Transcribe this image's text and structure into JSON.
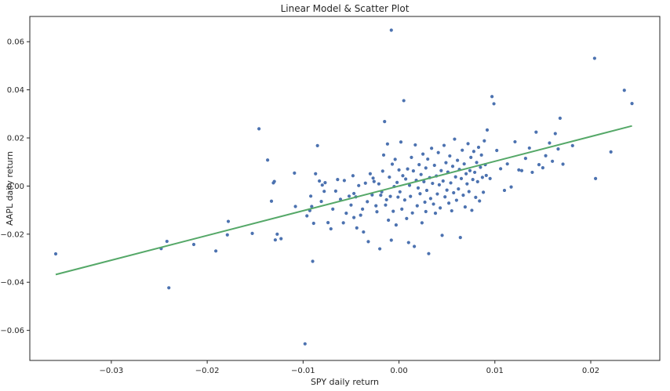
{
  "chart_data": {
    "type": "scatter",
    "title": "Linear Model & Scatter Plot",
    "xlabel": "SPY daily return",
    "ylabel": "AAPL daily return",
    "xlim": [
      -0.0385,
      0.0272
    ],
    "ylim": [
      -0.0725,
      0.0705
    ],
    "x_ticks": [
      -0.03,
      -0.02,
      -0.01,
      0.0,
      0.01,
      0.02
    ],
    "x_tick_labels": [
      "−0.03",
      "−0.02",
      "−0.01",
      "0.00",
      "0.01",
      "0.02"
    ],
    "y_ticks": [
      -0.06,
      -0.04,
      -0.02,
      0.0,
      0.02,
      0.04,
      0.06
    ],
    "y_tick_labels": [
      "−0.06",
      "−0.04",
      "−0.02",
      "0.00",
      "0.02",
      "0.04",
      "0.06"
    ],
    "grid": false,
    "colors": {
      "points": "#4c72b0",
      "line": "#55a868",
      "axes": "#262626"
    },
    "series": [
      {
        "kind": "scatter",
        "points": [
          [
            -0.0358,
            -0.0282
          ],
          [
            -0.0248,
            -0.026
          ],
          [
            -0.0242,
            -0.023
          ],
          [
            -0.024,
            -0.0423
          ],
          [
            -0.0214,
            -0.0243
          ],
          [
            -0.0191,
            -0.027
          ],
          [
            -0.0179,
            -0.0203
          ],
          [
            -0.0178,
            -0.0147
          ],
          [
            -0.0153,
            -0.0197
          ],
          [
            -0.0146,
            0.0238
          ],
          [
            -0.0137,
            0.0108
          ],
          [
            -0.0133,
            -0.0063
          ],
          [
            -0.0131,
            0.0013
          ],
          [
            -0.013,
            0.0019
          ],
          [
            -0.0129,
            -0.0224
          ],
          [
            -0.0127,
            -0.02
          ],
          [
            -0.0123,
            -0.0219
          ],
          [
            -0.0109,
            0.0054
          ],
          [
            -0.0108,
            -0.0085
          ],
          [
            -0.0098,
            -0.0656
          ],
          [
            -0.0096,
            -0.0124
          ],
          [
            -0.0093,
            -0.0102
          ],
          [
            -0.0092,
            -0.0042
          ],
          [
            -0.0091,
            -0.0085
          ],
          [
            -0.009,
            -0.0313
          ],
          [
            -0.0089,
            -0.0155
          ],
          [
            -0.0087,
            0.0051
          ],
          [
            -0.0085,
            0.0168
          ],
          [
            -0.0083,
            0.0021
          ],
          [
            -0.0081,
            -0.0064
          ],
          [
            -0.008,
            0.0004
          ],
          [
            -0.0078,
            -0.0022
          ],
          [
            -0.0077,
            0.0014
          ],
          [
            -0.0074,
            -0.0152
          ],
          [
            -0.0071,
            -0.0178
          ],
          [
            -0.0069,
            -0.0096
          ],
          [
            -0.0066,
            -0.0021
          ],
          [
            -0.0064,
            0.0027
          ],
          [
            -0.0061,
            -0.0055
          ],
          [
            -0.0058,
            -0.0153
          ],
          [
            -0.0057,
            0.0023
          ],
          [
            -0.0055,
            -0.0113
          ],
          [
            -0.0052,
            -0.0042
          ],
          [
            -0.005,
            -0.0079
          ],
          [
            -0.0048,
            0.0043
          ],
          [
            -0.0047,
            -0.0031
          ],
          [
            -0.0045,
            -0.0045
          ],
          [
            -0.0044,
            -0.0174
          ],
          [
            -0.0042,
            0.0002
          ],
          [
            -0.004,
            -0.0121
          ],
          [
            -0.0038,
            -0.0096
          ],
          [
            -0.0037,
            -0.0191
          ],
          [
            -0.0035,
            0.0012
          ],
          [
            -0.0033,
            -0.0065
          ],
          [
            -0.0032,
            -0.0231
          ],
          [
            -0.003,
            0.0051
          ],
          [
            -0.0028,
            -0.0037
          ],
          [
            -0.0027,
            0.0033
          ],
          [
            -0.0026,
            0.0019
          ],
          [
            -0.0024,
            -0.0082
          ],
          [
            -0.0023,
            -0.0107
          ],
          [
            -0.0021,
            0.0009
          ],
          [
            -0.002,
            -0.0261
          ],
          [
            -0.0019,
            -0.0038
          ],
          [
            -0.0018,
            -0.0024
          ],
          [
            -0.0017,
            0.0062
          ],
          [
            -0.0016,
            0.0129
          ],
          [
            -0.0015,
            0.0268
          ],
          [
            -0.0014,
            -0.0079
          ],
          [
            -0.0013,
            -0.0057
          ],
          [
            -0.0012,
            0.0175
          ],
          [
            -0.0011,
            -0.0142
          ],
          [
            -0.001,
            0.0037
          ],
          [
            -0.0009,
            -0.0043
          ],
          [
            -0.0008,
            -0.0225
          ],
          [
            -0.0007,
            0.0091
          ],
          [
            -0.0006,
            -0.0105
          ],
          [
            -0.0005,
            -0.0002
          ],
          [
            -0.0004,
            0.0111
          ],
          [
            -0.0003,
            -0.0162
          ],
          [
            -0.0002,
            0.0015
          ],
          [
            -0.0001,
            -0.0046
          ],
          [
            0.0,
            0.0067
          ],
          [
            0.0001,
            -0.0024
          ],
          [
            0.0002,
            0.0183
          ],
          [
            0.0003,
            -0.0096
          ],
          [
            0.0004,
            0.0043
          ],
          [
            0.0005,
            0.0355
          ],
          [
            0.0006,
            -0.0058
          ],
          [
            0.0007,
            0.0029
          ],
          [
            0.0008,
            -0.0135
          ],
          [
            0.0009,
            0.0071
          ],
          [
            0.001,
            -0.0235
          ],
          [
            0.0011,
            0.0003
          ],
          [
            0.0012,
            -0.0043
          ],
          [
            0.0013,
            0.0119
          ],
          [
            0.0014,
            -0.0112
          ],
          [
            0.0015,
            0.0063
          ],
          [
            0.0016,
            -0.0251
          ],
          [
            0.0017,
            0.0171
          ],
          [
            0.0018,
            0.0024
          ],
          [
            0.0019,
            -0.0082
          ],
          [
            0.002,
            -0.0008
          ],
          [
            0.0021,
            0.0089
          ],
          [
            0.0022,
            -0.0032
          ],
          [
            0.0023,
            0.0048
          ],
          [
            0.0024,
            -0.0153
          ],
          [
            0.0025,
            0.0133
          ],
          [
            0.0026,
            0.0018
          ],
          [
            0.0027,
            -0.0067
          ],
          [
            0.0028,
            0.0075
          ],
          [
            0.0029,
            -0.0018
          ],
          [
            0.003,
            0.0112
          ],
          [
            0.0031,
            -0.0281
          ],
          [
            0.0032,
            0.0035
          ],
          [
            0.0033,
            -0.0052
          ],
          [
            0.0034,
            0.0157
          ],
          [
            0.0035,
            0.0011
          ],
          [
            0.0036,
            -0.0075
          ],
          [
            0.0037,
            0.0086
          ],
          [
            0.0038,
            -0.0113
          ],
          [
            0.0039,
            0.0042
          ],
          [
            0.004,
            -0.0033
          ],
          [
            0.0041,
            0.0139
          ],
          [
            0.0042,
            0.0005
          ],
          [
            0.0043,
            -0.0091
          ],
          [
            0.0044,
            0.0064
          ],
          [
            0.0045,
            -0.0205
          ],
          [
            0.0046,
            0.0021
          ],
          [
            0.0047,
            0.0169
          ],
          [
            0.0048,
            -0.0045
          ],
          [
            0.0049,
            0.0097
          ],
          [
            0.005,
            -0.0017
          ],
          [
            0.0051,
            0.0058
          ],
          [
            0.0052,
            -0.0071
          ],
          [
            0.0053,
            0.0125
          ],
          [
            0.0054,
            0.0013
          ],
          [
            0.0055,
            -0.0103
          ],
          [
            0.0056,
            0.0082
          ],
          [
            0.0057,
            -0.0028
          ],
          [
            0.0058,
            0.0195
          ],
          [
            0.0059,
            0.0038
          ],
          [
            0.006,
            -0.0059
          ],
          [
            0.0061,
            0.0107
          ],
          [
            0.0062,
            -0.0012
          ],
          [
            0.0063,
            0.0069
          ],
          [
            0.0064,
            -0.0214
          ],
          [
            0.0065,
            0.0031
          ],
          [
            0.0066,
            0.0149
          ],
          [
            0.0067,
            -0.0038
          ],
          [
            0.0068,
            0.0092
          ],
          [
            0.0069,
            -0.0087
          ],
          [
            0.007,
            0.0051
          ],
          [
            0.0071,
            0.0009
          ],
          [
            0.0072,
            0.0176
          ],
          [
            0.0073,
            -0.0023
          ],
          [
            0.0074,
            0.0064
          ],
          [
            0.0075,
            0.0119
          ],
          [
            0.0076,
            -0.0101
          ],
          [
            0.0077,
            0.0027
          ],
          [
            0.0078,
            0.0144
          ],
          [
            0.0079,
            0.0057
          ],
          [
            0.008,
            -0.0047
          ],
          [
            0.0081,
            0.0098
          ],
          [
            0.0082,
            0.0018
          ],
          [
            0.0083,
            0.0161
          ],
          [
            0.0084,
            -0.0062
          ],
          [
            0.0085,
            0.0078
          ],
          [
            0.0086,
            0.0129
          ],
          [
            0.0087,
            0.0036
          ],
          [
            0.0088,
            -0.0026
          ],
          [
            0.0089,
            0.0188
          ],
          [
            0.009,
            0.0089
          ],
          [
            0.0091,
            0.0044
          ],
          [
            0.0092,
            0.0233
          ],
          [
            0.0095,
            0.0031
          ],
          [
            0.0097,
            0.0372
          ],
          [
            0.0099,
            0.0342
          ],
          [
            0.0102,
            0.0148
          ],
          [
            0.0106,
            0.0072
          ],
          [
            0.011,
            -0.0018
          ],
          [
            0.0113,
            0.0092
          ],
          [
            0.0117,
            -0.0004
          ],
          [
            0.0121,
            0.0184
          ],
          [
            0.0125,
            0.0067
          ],
          [
            0.0128,
            0.0064
          ],
          [
            0.0132,
            0.0115
          ],
          [
            0.0136,
            0.0158
          ],
          [
            0.0139,
            0.0057
          ],
          [
            0.0143,
            0.0224
          ],
          [
            0.0146,
            0.0089
          ],
          [
            0.015,
            0.0076
          ],
          [
            0.0153,
            0.0126
          ],
          [
            0.0157,
            0.0179
          ],
          [
            0.016,
            0.0103
          ],
          [
            0.0163,
            0.0218
          ],
          [
            0.0166,
            0.0154
          ],
          [
            0.0168,
            0.0282
          ],
          [
            0.0171,
            0.0091
          ],
          [
            0.0181,
            0.0168
          ],
          [
            0.0204,
            0.0531
          ],
          [
            0.0205,
            0.0031
          ],
          [
            0.0221,
            0.0142
          ],
          [
            0.0235,
            0.0398
          ],
          [
            0.0243,
            0.0343
          ],
          [
            -0.0008,
            0.0648
          ],
          [
            -0.0047,
            -0.0131
          ],
          [
            0.0028,
            -0.0106
          ]
        ]
      },
      {
        "kind": "line",
        "start": [
          -0.0358,
          -0.0368
        ],
        "end": [
          0.0243,
          0.025
        ]
      }
    ]
  }
}
